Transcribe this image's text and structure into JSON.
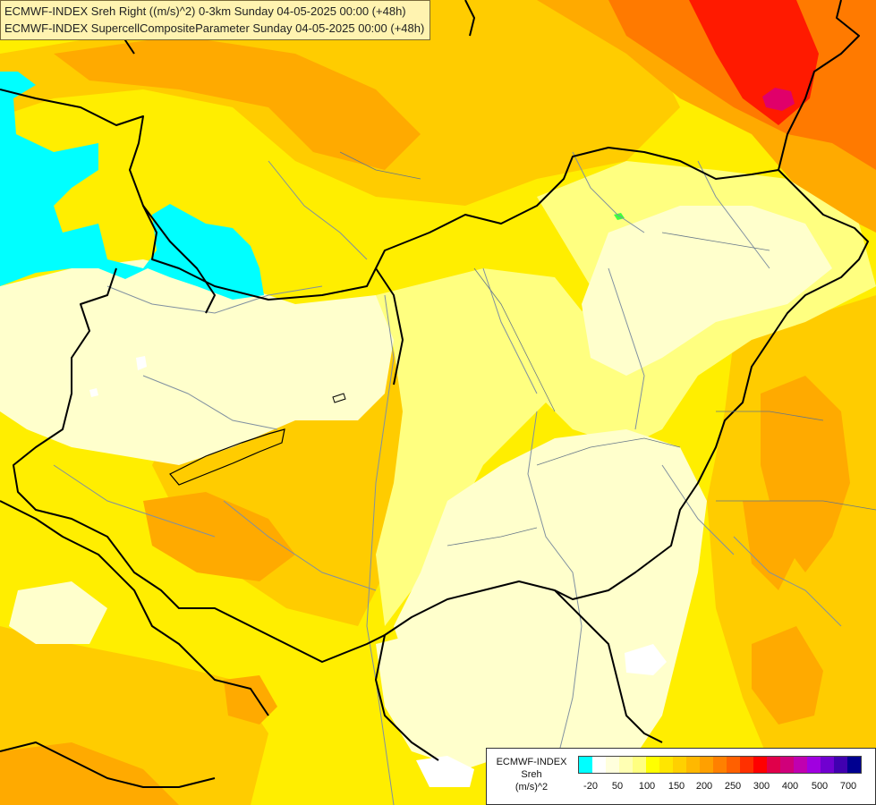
{
  "header": {
    "line1": "ECMWF-INDEX Sreh Right ((m/s)^2) 0-3km Sunday 04-05-2025 00:00 (+48h)",
    "line2": "ECMWF-INDEX SupercellCompositeParameter Sunday 04-05-2025 00:00 (+48h)"
  },
  "legend": {
    "title_line1": "ECMWF-INDEX",
    "title_line2": "Sreh",
    "title_line3": "(m/s)^2",
    "colors": [
      "#00ffff",
      "#ffffff",
      "#ffffdd",
      "#ffffb3",
      "#ffff80",
      "#ffff00",
      "#ffe600",
      "#ffd000",
      "#ffb800",
      "#ffa000",
      "#ff8000",
      "#ff6000",
      "#ff3000",
      "#ff0000",
      "#e0004a",
      "#d0007a",
      "#c000b0",
      "#a000e0",
      "#7000d0",
      "#4000b0",
      "#000090"
    ],
    "ticks": [
      "-20",
      "50",
      "100",
      "150",
      "200",
      "250",
      "300",
      "400",
      "500",
      "700"
    ]
  },
  "colors": {
    "pale": "#ffffcc",
    "light_yellow": "#ffff80",
    "yellow": "#ffee00",
    "gold": "#ffcc00",
    "orange": "#ffaa00",
    "dark_orange": "#ff7a00",
    "red": "#ff1a00",
    "magenta": "#e0006a",
    "cyan": "#00ffff",
    "border": "#000000",
    "river": "#8090a0"
  }
}
